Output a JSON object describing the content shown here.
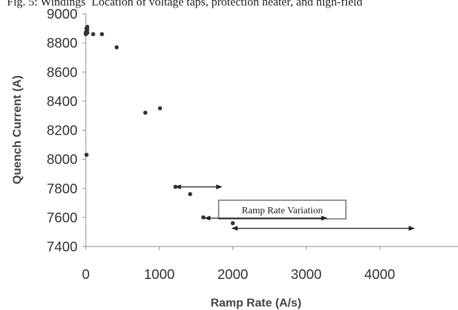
{
  "caption": "Fig. 5:  Windings  Location of voltage taps, protection heater, and high-field",
  "chart_data": {
    "type": "scatter",
    "xlabel": "Ramp Rate (A/s)",
    "ylabel": "Quench Current (A)",
    "xlim": [
      0,
      4500
    ],
    "ylim": [
      7400,
      9000
    ],
    "xticks": [
      "0",
      "1000",
      "2000",
      "3000",
      "4000"
    ],
    "yticks": [
      "7400",
      "7600",
      "7800",
      "8000",
      "8200",
      "8400",
      "8600",
      "8800",
      "9000"
    ],
    "grid": false,
    "points": [
      {
        "x": 0,
        "y": 8860
      },
      {
        "x": 0,
        "y": 8870
      },
      {
        "x": 10,
        "y": 8880
      },
      {
        "x": 10,
        "y": 8900
      },
      {
        "x": 20,
        "y": 8910
      },
      {
        "x": 20,
        "y": 8890
      },
      {
        "x": 20,
        "y": 8870
      },
      {
        "x": 100,
        "y": 8860
      },
      {
        "x": 220,
        "y": 8860
      },
      {
        "x": 420,
        "y": 8770
      },
      {
        "x": 810,
        "y": 8320
      },
      {
        "x": 1010,
        "y": 8350
      },
      {
        "x": 10,
        "y": 8030
      },
      {
        "x": 1220,
        "y": 7810
      },
      {
        "x": 1420,
        "y": 7760
      },
      {
        "x": 1600,
        "y": 7600
      },
      {
        "x": 2000,
        "y": 7560
      }
    ],
    "annotations": [
      {
        "text": "Ramp Rate Variation"
      }
    ],
    "ranges": [
      {
        "x0": 1220,
        "x1": 1850,
        "y": 7810
      },
      {
        "x0": 1620,
        "x1": 3280,
        "y": 7595
      },
      {
        "x0": 1990,
        "x1": 4470,
        "y": 7525
      }
    ]
  }
}
